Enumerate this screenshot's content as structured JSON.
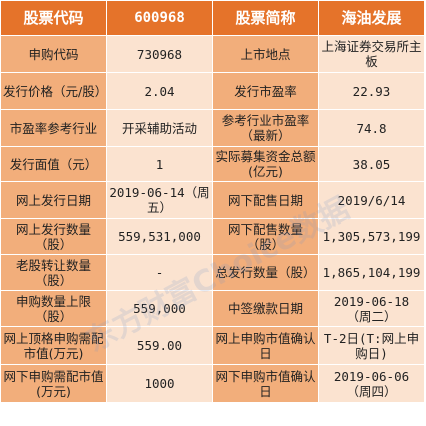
{
  "header": [
    "股票代码",
    "600968",
    "股票简称",
    "海油发展"
  ],
  "rows": [
    [
      "申购代码",
      "730968",
      "上市地点",
      "上海证券交易所主板"
    ],
    [
      "发行价格（元/股）",
      "2.04",
      "发行市盈率",
      "22.93"
    ],
    [
      "市盈率参考行业",
      "开采辅助活动",
      "参考行业市盈率（最新）",
      "74.8"
    ],
    [
      "发行面值（元）",
      "1",
      "实际募集资金总额(亿元)",
      "38.05"
    ],
    [
      "网上发行日期",
      "2019-06-14（周五）",
      "网下配售日期",
      "2019/6/14"
    ],
    [
      "网上发行数量（股）",
      "559,531,000",
      "网下配售数量（股）",
      "1,305,573,199"
    ],
    [
      "老股转让数量（股）",
      "-",
      "总发行数量（股）",
      "1,865,104,199"
    ],
    [
      "申购数量上限（股）",
      "559,000",
      "中签缴款日期",
      "2019-06-18 （周二）"
    ],
    [
      "网上顶格申购需配市值(万元)",
      "559.00",
      "网上申购市值确认日",
      "T-2日(T:网上申购日)"
    ],
    [
      "网下申购需配市值(万元)",
      "1000",
      "网下申购市值确认日",
      "2019-06-06 （周四）"
    ]
  ],
  "watermark": "东方财富Choice数据"
}
